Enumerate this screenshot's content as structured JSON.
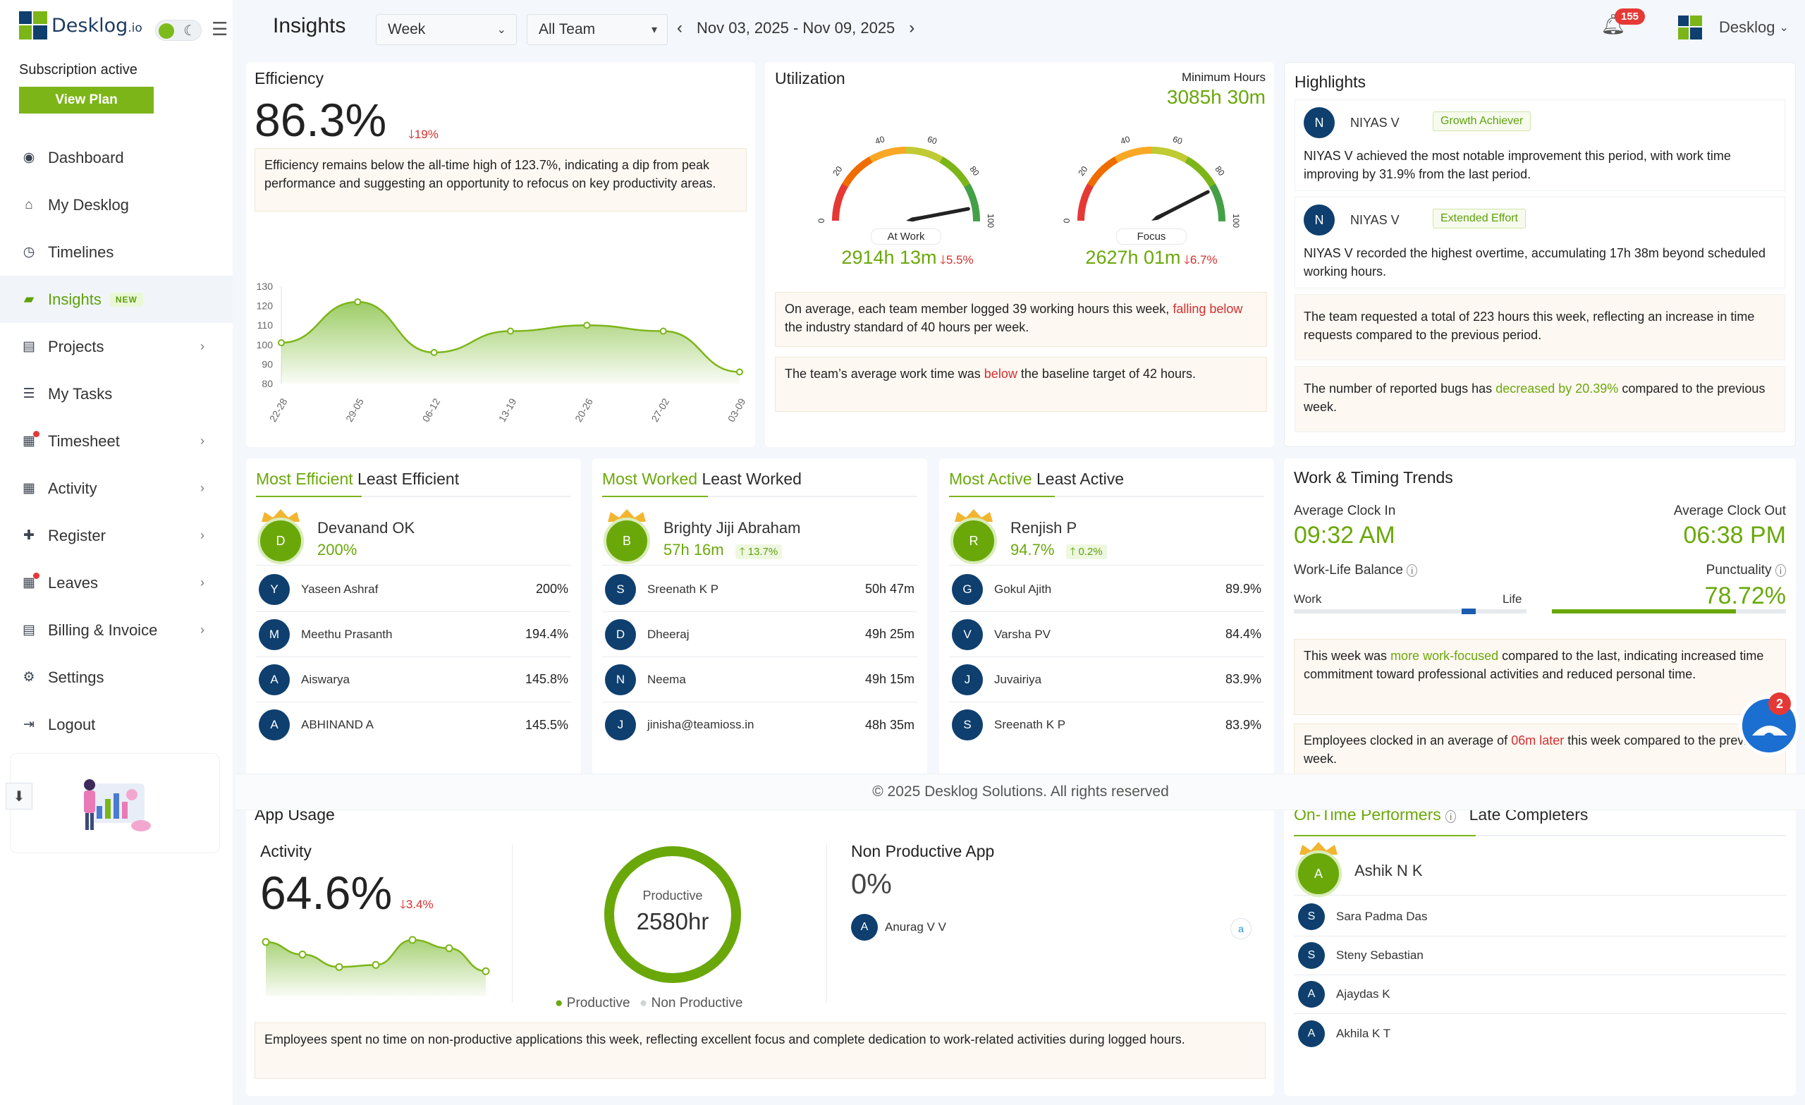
{
  "sidebar": {
    "logo_text": "Desklog",
    "logo_suffix": ".io",
    "subscription_status": "Subscription active",
    "view_plan_label": "View Plan",
    "items": [
      {
        "label": "Dashboard",
        "icon": "palette-icon"
      },
      {
        "label": "My Desklog",
        "icon": "home-icon"
      },
      {
        "label": "Timelines",
        "icon": "clock-icon"
      },
      {
        "label": "Insights",
        "icon": "insights-icon",
        "badge": "NEW"
      },
      {
        "label": "Projects",
        "icon": "book-icon"
      },
      {
        "label": "My Tasks",
        "icon": "tasks-icon"
      },
      {
        "label": "Timesheet",
        "icon": "timesheet-icon"
      },
      {
        "label": "Activity",
        "icon": "grid-icon"
      },
      {
        "label": "Register",
        "icon": "plus-icon"
      },
      {
        "label": "Leaves",
        "icon": "calendar-icon"
      },
      {
        "label": "Billing & Invoice",
        "icon": "invoice-icon"
      },
      {
        "label": "Settings",
        "icon": "gear-icon"
      },
      {
        "label": "Logout",
        "icon": "logout-icon"
      }
    ]
  },
  "header": {
    "title": "Insights",
    "period_select": "Week",
    "team_select": "All Team",
    "date_range": "Nov 03, 2025 - Nov 09, 2025",
    "notification_count": "155",
    "account_name": "Desklog"
  },
  "efficiency": {
    "title": "Efficiency",
    "value": "86.3%",
    "delta": "19%",
    "note": "Efficiency remains below the all-time high of 123.7%, indicating a dip from peak performance and suggesting an opportunity to refocus on key productivity areas.",
    "chart_data": {
      "type": "area",
      "x": [
        "22-28",
        "29-05",
        "06-12",
        "13-19",
        "20-26",
        "27-02",
        "03-09"
      ],
      "values": [
        101,
        122,
        96,
        107,
        110,
        107,
        86
      ],
      "ylim": [
        80,
        130
      ],
      "yticks": [
        "130",
        "120",
        "110",
        "100",
        "90",
        "80"
      ]
    }
  },
  "utilization": {
    "title": "Utilization",
    "min_hours_label": "Minimum Hours",
    "min_hours_value": "3085h 30m",
    "gauges": [
      {
        "label": "At Work",
        "value": "2914h 13m",
        "delta": "5.5%",
        "level": 94
      },
      {
        "label": "Focus",
        "value": "2627h 01m",
        "delta": "6.7%",
        "level": 85
      }
    ],
    "gauge_ticks": [
      "0",
      "20",
      "40",
      "60",
      "80",
      "100"
    ],
    "note1_before": "On average, each team member logged 39 working hours this week,",
    "note1_highlight": "falling below",
    "note1_after": "the industry standard of 40 hours per week.",
    "note2_before": "The team’s average work time was",
    "note2_highlight": "below",
    "note2_after": "the baseline target of 42 hours."
  },
  "highlights": {
    "title": "Highlights",
    "items": [
      {
        "initial": "N",
        "name": "NIYAS V",
        "tag": "Growth Achiever",
        "text": "NIYAS V achieved the most notable improvement this period, with work time improving by 31.9% from the last period."
      },
      {
        "initial": "N",
        "name": "NIYAS V",
        "tag": "Extended Effort",
        "text": "NIYAS V recorded the highest overtime, accumulating 17h 38m beyond scheduled working hours."
      }
    ],
    "note1": "The team requested a total of 223 hours this week, reflecting an increase in time requests compared to the previous period.",
    "note2_before": "The number of reported bugs has",
    "note2_highlight": "decreased by 20.39%",
    "note2_after": "compared to the previous week."
  },
  "efficient": {
    "head_active": "Most Efficient",
    "head_other": "Least Efficient",
    "top": {
      "initial": "D",
      "name": "Devanand OK",
      "value": "200%"
    },
    "rows": [
      {
        "initial": "Y",
        "name": "Yaseen Ashraf",
        "value": "200%"
      },
      {
        "initial": "M",
        "name": "Meethu Prasanth",
        "value": "194.4%"
      },
      {
        "initial": "A",
        "name": "Aiswarya",
        "value": "145.8%"
      },
      {
        "initial": "A",
        "name": "ABHINAND A",
        "value": "145.5%"
      }
    ]
  },
  "worked": {
    "head_active": "Most Worked",
    "head_other": "Least Worked",
    "top": {
      "initial": "B",
      "name": "Brighty Jiji Abraham",
      "value": "57h 16m",
      "delta": "13.7%"
    },
    "rows": [
      {
        "initial": "S",
        "name": "Sreenath K P",
        "value": "50h 47m"
      },
      {
        "initial": "D",
        "name": "Dheeraj",
        "value": "49h 25m"
      },
      {
        "initial": "N",
        "name": "Neema",
        "value": "49h 15m"
      },
      {
        "initial": "J",
        "name": "jinisha@teamioss.in",
        "value": "48h 35m"
      }
    ]
  },
  "active": {
    "head_active": "Most Active",
    "head_other": "Least Active",
    "top": {
      "initial": "R",
      "name": "Renjish P",
      "value": "94.7%",
      "delta": "0.2%"
    },
    "rows": [
      {
        "initial": "G",
        "name": "Gokul Ajith",
        "value": "89.9%"
      },
      {
        "initial": "V",
        "name": "Varsha PV",
        "value": "84.4%"
      },
      {
        "initial": "J",
        "name": "Juvairiya",
        "value": "83.9%"
      },
      {
        "initial": "S",
        "name": "Sreenath K P",
        "value": "83.9%"
      }
    ]
  },
  "trends": {
    "title": "Work & Timing Trends",
    "clock_in_label": "Average Clock In",
    "clock_in": "09:32 AM",
    "clock_out_label": "Average Clock Out",
    "clock_out": "06:38 PM",
    "wlb_label": "Work-Life Balance",
    "work_label": "Work",
    "life_label": "Life",
    "work_life_level": 0.75,
    "punctuality_label": "Punctuality",
    "punctuality": "78.72%",
    "punctuality_level": 0.7872,
    "note1_before": "This week was",
    "note1_highlight": "more work-focused",
    "note1_after": "compared to the last, indicating increased time commitment toward professional activities and reduced personal time.",
    "note2_before": "Employees clocked in an average of",
    "note2_highlight": "06m later",
    "note2_after": "this week compared to the previous week."
  },
  "footer": "© 2025 Desklog Solutions. All rights reserved",
  "app_usage": {
    "title": "App Usage",
    "activity_label": "Activity",
    "activity_value": "64.6%",
    "activity_delta": "3.4%",
    "sparkline": [
      70,
      64,
      58,
      59,
      71,
      67,
      56
    ],
    "donut_label": "Productive",
    "donut_value": "2580hr",
    "productive_share": 100,
    "legend_productive": "Productive",
    "legend_non": "Non Productive",
    "non_prod_title": "Non Productive App",
    "non_prod_value": "0%",
    "non_prod_user_initial": "A",
    "non_prod_user": "Anurag V V",
    "note": "Employees spent no time on non-productive applications this week, reflecting excellent focus and complete dedication to work-related activities during logged hours."
  },
  "performers": {
    "tab_active": "On-Time Performers",
    "tab_other": "Late Completers",
    "top": {
      "initial": "A",
      "name": "Ashik N K"
    },
    "rows": [
      {
        "initial": "S",
        "name": "Sara Padma Das"
      },
      {
        "initial": "S",
        "name": "Steny Sebastian"
      },
      {
        "initial": "A",
        "name": "Ajaydas K"
      },
      {
        "initial": "A",
        "name": "Akhila K T"
      }
    ]
  },
  "chat_badge": "2",
  "colors": {
    "accent": "#7cb518",
    "navy": "#0e3f6e",
    "danger": "#d32f2f"
  }
}
